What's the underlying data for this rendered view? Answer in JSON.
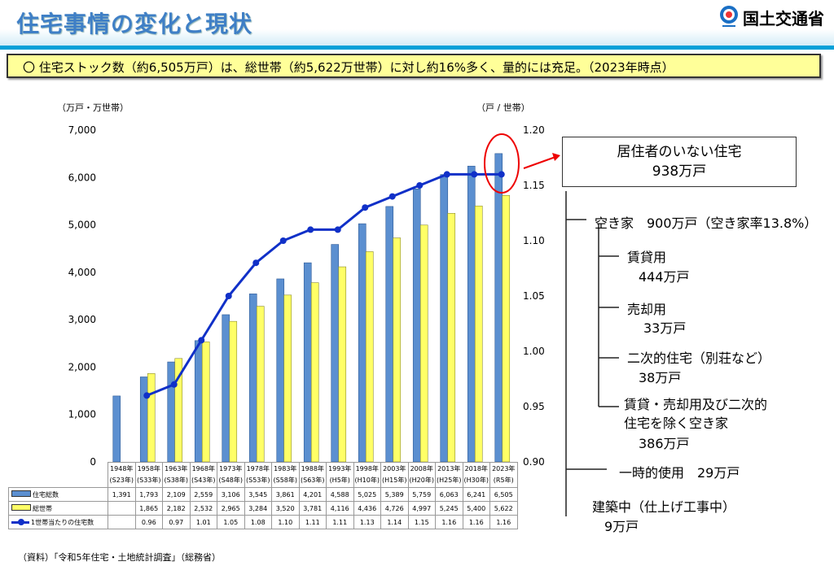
{
  "header": {
    "title": "住宅事情の変化と現状",
    "org": "国土交通省"
  },
  "summary": "〇  住宅ストック数（約6,505万戸）は、総世帯（約5,622万世帯）に対し約16%多く、量的には充足。（2023年時点）",
  "chart_data": {
    "type": "bar+line",
    "left_axis_label": "（万戸・万世帯）",
    "right_axis_label": "（戸 / 世帯）",
    "ylim": [
      0,
      7000
    ],
    "y2lim": [
      0.9,
      1.2
    ],
    "yticks": [
      "0",
      "1,000",
      "2,000",
      "3,000",
      "4,000",
      "5,000",
      "6,000",
      "7,000"
    ],
    "y2ticks": [
      "0.90",
      "0.95",
      "1.00",
      "1.05",
      "1.10",
      "1.15",
      "1.20"
    ],
    "categories": [
      "1948年",
      "1958年",
      "1963年",
      "1968年",
      "1973年",
      "1978年",
      "1983年",
      "1988年",
      "1993年",
      "1998年",
      "2003年",
      "2008年",
      "2013年",
      "2018年",
      "2023年"
    ],
    "subcategories": [
      "(S23年)",
      "(S33年)",
      "(S38年)",
      "(S43年)",
      "(S48年)",
      "(S53年)",
      "(S58年)",
      "(S63年)",
      "(H5年)",
      "(H10年)",
      "(H15年)",
      "(H20年)",
      "(H25年)",
      "(H30年)",
      "(R5年)"
    ],
    "series": [
      {
        "name": "住宅総数",
        "type": "bar",
        "color": "#5b8fd0",
        "values": [
          1391,
          1793,
          2109,
          2559,
          3106,
          3545,
          3861,
          4201,
          4588,
          5025,
          5389,
          5759,
          6063,
          6241,
          6505
        ]
      },
      {
        "name": "総世帯",
        "type": "bar",
        "color": "#ffff66",
        "values": [
          null,
          1865,
          2182,
          2532,
          2965,
          3284,
          3520,
          3781,
          4116,
          4436,
          4726,
          4997,
          5245,
          5400,
          5622
        ]
      },
      {
        "name": "1世帯当たりの住宅数",
        "type": "line",
        "axis": "right",
        "color": "#1030c8",
        "values": [
          null,
          0.96,
          0.97,
          1.01,
          1.05,
          1.08,
          1.1,
          1.11,
          1.11,
          1.13,
          1.14,
          1.15,
          1.16,
          1.16,
          1.16
        ]
      }
    ]
  },
  "breakdown": {
    "vacant_total_title": "居住者のいない住宅",
    "vacant_total_value": "938万戸",
    "akiya": "空き家　900万戸（空き家率13.8%）",
    "rental": "賃貸用",
    "rental_v": "444万戸",
    "sale": "売却用",
    "sale_v": "33万戸",
    "secondary": "二次的住宅（別荘など）",
    "secondary_v": "38万戸",
    "other1": "賃貸・売却用及び二次的",
    "other2": "住宅を除く空き家",
    "other_v": "386万戸",
    "temporary": "一時的使用　29万戸",
    "construction": "建築中（仕上げ工事中）",
    "construction_v": "9万戸"
  },
  "source": "（資料）「令和5年住宅・土地統計調査」（総務省）"
}
